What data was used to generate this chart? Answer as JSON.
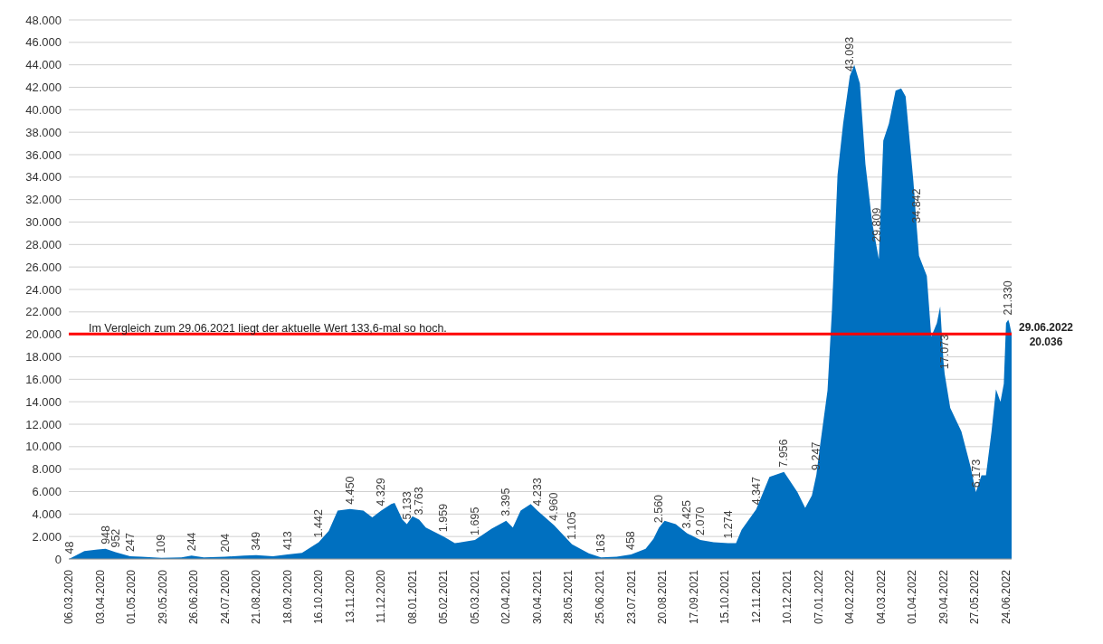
{
  "chart_data": {
    "type": "area",
    "color": "#0070c0",
    "grid": "y",
    "x": [
      "2020-03-06",
      "2020-03-07",
      "2020-03-20",
      "2020-04-01",
      "2020-04-08",
      "2020-04-17",
      "2020-04-30",
      "2020-05-10",
      "2020-05-28",
      "2020-06-15",
      "2020-06-24",
      "2020-07-05",
      "2020-07-24",
      "2020-08-10",
      "2020-08-21",
      "2020-09-05",
      "2020-09-18",
      "2020-10-01",
      "2020-10-16",
      "2020-10-25",
      "2020-11-02",
      "2020-11-13",
      "2020-11-25",
      "2020-12-03",
      "2020-12-11",
      "2020-12-20",
      "2020-12-23",
      "2020-12-30",
      "2021-01-03",
      "2021-01-08",
      "2021-01-14",
      "2021-01-20",
      "2021-02-05",
      "2021-02-15",
      "2021-03-05",
      "2021-03-20",
      "2021-04-02",
      "2021-04-08",
      "2021-04-15",
      "2021-04-24",
      "2021-04-30",
      "2021-05-15",
      "2021-05-31",
      "2021-06-15",
      "2021-06-26",
      "2021-07-10",
      "2021-07-23",
      "2021-08-05",
      "2021-08-12",
      "2021-08-17",
      "2021-08-22",
      "2021-09-01",
      "2021-09-11",
      "2021-09-23",
      "2021-10-05",
      "2021-10-18",
      "2021-10-25",
      "2021-10-30",
      "2021-11-12",
      "2021-11-24",
      "2021-12-07",
      "2021-12-19",
      "2021-12-26",
      "2022-01-01",
      "2022-01-05",
      "2022-01-08",
      "2022-01-15",
      "2022-01-19",
      "2022-01-24",
      "2022-01-29",
      "2022-02-04",
      "2022-02-08",
      "2022-02-13",
      "2022-02-18",
      "2022-02-24",
      "2022-02-28",
      "2022-03-02",
      "2022-03-06",
      "2022-03-11",
      "2022-03-17",
      "2022-03-22",
      "2022-03-26",
      "2022-04-02",
      "2022-04-05",
      "2022-04-07",
      "2022-04-14",
      "2022-04-18",
      "2022-04-23",
      "2022-04-26",
      "2022-04-29",
      "2022-04-30",
      "2022-05-05",
      "2022-05-15",
      "2022-05-23",
      "2022-05-28",
      "2022-06-02",
      "2022-06-06",
      "2022-06-11",
      "2022-06-15",
      "2022-06-19",
      "2022-06-22",
      "2022-06-24",
      "2022-06-26",
      "2022-06-27",
      "2022-06-29"
    ],
    "values": [
      0,
      50,
      700,
      850,
      900,
      600,
      250,
      200,
      100,
      150,
      300,
      150,
      200,
      300,
      350,
      250,
      400,
      550,
      1500,
      2500,
      4300,
      4450,
      4300,
      3700,
      4300,
      4900,
      5000,
      3500,
      3100,
      3800,
      3500,
      2800,
      2000,
      1400,
      1700,
      2700,
      3400,
      2800,
      4300,
      4900,
      4300,
      3000,
      1300,
      500,
      150,
      200,
      400,
      900,
      1800,
      2800,
      3400,
      3100,
      2300,
      1700,
      1500,
      1400,
      1400,
      2600,
      4400,
      7300,
      7750,
      5950,
      4550,
      5650,
      7500,
      9850,
      15000,
      22150,
      34200,
      38750,
      43000,
      44000,
      42350,
      35150,
      30000,
      27800,
      26700,
      37250,
      38750,
      41700,
      41900,
      41200,
      33600,
      29500,
      27000,
      25200,
      19800,
      21000,
      22500,
      17500,
      16500,
      13450,
      11350,
      8300,
      5950,
      7450,
      7450,
      11350,
      15100,
      14000,
      15600,
      21000,
      21300,
      21000,
      20036
    ],
    "xlim": [
      "2020-03-06",
      "2022-06-29"
    ],
    "xticks": [
      {
        "value": "2020-03-06",
        "label": "06.03.2020"
      },
      {
        "value": "2020-04-03",
        "label": "03.04.2020"
      },
      {
        "value": "2020-05-01",
        "label": "01.05.2020"
      },
      {
        "value": "2020-05-29",
        "label": "29.05.2020"
      },
      {
        "value": "2020-06-26",
        "label": "26.06.2020"
      },
      {
        "value": "2020-07-24",
        "label": "24.07.2020"
      },
      {
        "value": "2020-08-21",
        "label": "21.08.2020"
      },
      {
        "value": "2020-09-18",
        "label": "18.09.2020"
      },
      {
        "value": "2020-10-16",
        "label": "16.10.2020"
      },
      {
        "value": "2020-11-13",
        "label": "13.11.2020"
      },
      {
        "value": "2020-12-11",
        "label": "11.12.2020"
      },
      {
        "value": "2021-01-08",
        "label": "08.01.2021"
      },
      {
        "value": "2021-02-05",
        "label": "05.02.2021"
      },
      {
        "value": "2021-03-05",
        "label": "05.03.2021"
      },
      {
        "value": "2021-04-02",
        "label": "02.04.2021"
      },
      {
        "value": "2021-04-30",
        "label": "30.04.2021"
      },
      {
        "value": "2021-05-28",
        "label": "28.05.2021"
      },
      {
        "value": "2021-06-25",
        "label": "25.06.2021"
      },
      {
        "value": "2021-07-23",
        "label": "23.07.2021"
      },
      {
        "value": "2021-08-20",
        "label": "20.08.2021"
      },
      {
        "value": "2021-09-17",
        "label": "17.09.2021"
      },
      {
        "value": "2021-10-15",
        "label": "15.10.2021"
      },
      {
        "value": "2021-11-12",
        "label": "12.11.2021"
      },
      {
        "value": "2021-12-10",
        "label": "10.12.2021"
      },
      {
        "value": "2022-01-07",
        "label": "07.01.2022"
      },
      {
        "value": "2022-02-04",
        "label": "04.02.2022"
      },
      {
        "value": "2022-03-04",
        "label": "04.03.2022"
      },
      {
        "value": "2022-04-01",
        "label": "01.04.2022"
      },
      {
        "value": "2022-04-29",
        "label": "29.04.2022"
      },
      {
        "value": "2022-05-27",
        "label": "27.05.2022"
      },
      {
        "value": "2022-06-24",
        "label": "24.06.2022"
      }
    ],
    "ylim": [
      0,
      48000
    ],
    "yticks": [
      {
        "value": 0,
        "label": "0"
      },
      {
        "value": 2000,
        "label": "2.000"
      },
      {
        "value": 4000,
        "label": "4.000"
      },
      {
        "value": 6000,
        "label": "6.000"
      },
      {
        "value": 8000,
        "label": "8.000"
      },
      {
        "value": 10000,
        "label": "10.000"
      },
      {
        "value": 12000,
        "label": "12.000"
      },
      {
        "value": 14000,
        "label": "14.000"
      },
      {
        "value": 16000,
        "label": "16.000"
      },
      {
        "value": 18000,
        "label": "18.000"
      },
      {
        "value": 20000,
        "label": "20.000"
      },
      {
        "value": 22000,
        "label": "22.000"
      },
      {
        "value": 24000,
        "label": "24.000"
      },
      {
        "value": 26000,
        "label": "26.000"
      },
      {
        "value": 28000,
        "label": "28.000"
      },
      {
        "value": 30000,
        "label": "30.000"
      },
      {
        "value": 32000,
        "label": "32.000"
      },
      {
        "value": 34000,
        "label": "34.000"
      },
      {
        "value": 36000,
        "label": "36.000"
      },
      {
        "value": 38000,
        "label": "38.000"
      },
      {
        "value": 40000,
        "label": "40.000"
      },
      {
        "value": 42000,
        "label": "42.000"
      },
      {
        "value": 44000,
        "label": "44.000"
      },
      {
        "value": 46000,
        "label": "46.000"
      },
      {
        "value": 48000,
        "label": "48.000"
      }
    ],
    "ref_lines": [
      {
        "axis": "y",
        "value": 20036,
        "label": "29.06.2022\n20.036",
        "color": "#ff0000"
      }
    ],
    "annotations": [
      "Im Vergleich zum 29.06.2021 liegt der aktuelle Wert 133,6-mal so hoch.",
      {
        "text": "48",
        "x": "2020-03-07",
        "y": 50
      },
      {
        "text": "948",
        "x": "2020-04-08",
        "y": 900
      },
      {
        "text": "952",
        "x": "2020-04-17",
        "y": 600
      },
      {
        "text": "247",
        "x": "2020-04-30",
        "y": 250
      },
      {
        "text": "109",
        "x": "2020-05-28",
        "y": 100
      },
      {
        "text": "244",
        "x": "2020-06-24",
        "y": 300
      },
      {
        "text": "204",
        "x": "2020-07-24",
        "y": 200
      },
      {
        "text": "349",
        "x": "2020-08-21",
        "y": 350
      },
      {
        "text": "413",
        "x": "2020-09-18",
        "y": 400
      },
      {
        "text": "1.442",
        "x": "2020-10-16",
        "y": 1500
      },
      {
        "text": "4.450",
        "x": "2020-11-13",
        "y": 4450
      },
      {
        "text": "4.329",
        "x": "2020-12-11",
        "y": 4300
      },
      {
        "text": "5.133",
        "x": "2021-01-03",
        "y": 3100
      },
      {
        "text": "3.763",
        "x": "2021-01-14",
        "y": 3500
      },
      {
        "text": "1.959",
        "x": "2021-02-05",
        "y": 2000
      },
      {
        "text": "1.695",
        "x": "2021-03-05",
        "y": 1700
      },
      {
        "text": "3.395",
        "x": "2021-04-02",
        "y": 3400
      },
      {
        "text": "4.233",
        "x": "2021-04-30",
        "y": 4300
      },
      {
        "text": "4.960",
        "x": "2021-05-15",
        "y": 3000
      },
      {
        "text": "1.105",
        "x": "2021-05-31",
        "y": 1300
      },
      {
        "text": "163",
        "x": "2021-06-26",
        "y": 150
      },
      {
        "text": "458",
        "x": "2021-07-23",
        "y": 400
      },
      {
        "text": "2.560",
        "x": "2021-08-17",
        "y": 2800
      },
      {
        "text": "3.425",
        "x": "2021-09-11",
        "y": 2300
      },
      {
        "text": "2.070",
        "x": "2021-09-23",
        "y": 1700
      },
      {
        "text": "1.274",
        "x": "2021-10-18",
        "y": 1400
      },
      {
        "text": "4.347",
        "x": "2021-11-12",
        "y": 4400
      },
      {
        "text": "7.956",
        "x": "2021-12-07",
        "y": 7750
      },
      {
        "text": "9.247",
        "x": "2022-01-05",
        "y": 7500
      },
      {
        "text": "43.093",
        "x": "2022-02-04",
        "y": 43000
      },
      {
        "text": "29.809",
        "x": "2022-02-28",
        "y": 27800
      },
      {
        "text": "34.842",
        "x": "2022-04-05",
        "y": 29500
      },
      {
        "text": "17.073",
        "x": "2022-04-30",
        "y": 16500
      },
      {
        "text": "6.173",
        "x": "2022-05-28",
        "y": 5950
      },
      {
        "text": "21.330",
        "x": "2022-06-26",
        "y": 21300
      }
    ]
  }
}
